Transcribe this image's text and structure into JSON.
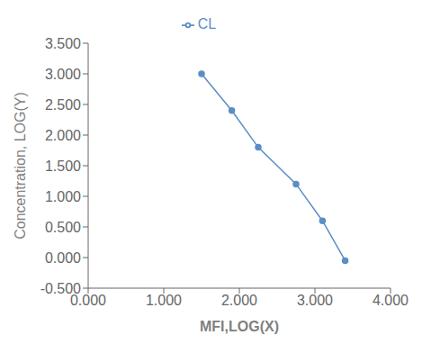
{
  "chart_data": {
    "type": "line",
    "x": [
      1.5,
      1.9,
      2.25,
      2.75,
      3.1,
      3.4
    ],
    "series": [
      {
        "name": "CL",
        "color": "#5b8ec4",
        "values": [
          3.0,
          2.4,
          1.8,
          1.2,
          0.6,
          -0.05
        ],
        "marker": "circle"
      }
    ],
    "xlabel": "MFI,LOG(X)",
    "ylabel": "Concentration, LOG(Y)",
    "xlim": [
      0.0,
      4.0
    ],
    "ylim": [
      -0.5,
      3.5
    ],
    "xticks": [
      {
        "value": 0,
        "label": "0.000"
      },
      {
        "value": 1,
        "label": "1.000"
      },
      {
        "value": 2,
        "label": "2.000"
      },
      {
        "value": 3,
        "label": "3.000"
      },
      {
        "value": 4,
        "label": "4.000"
      }
    ],
    "yticks": [
      {
        "value": -0.5,
        "label": "-0.500"
      },
      {
        "value": 0,
        "label": "0.000"
      },
      {
        "value": 0.5,
        "label": "0.500"
      },
      {
        "value": 1,
        "label": "1.000"
      },
      {
        "value": 1.5,
        "label": "1.500"
      },
      {
        "value": 2,
        "label": "2.000"
      },
      {
        "value": 2.5,
        "label": "2.500"
      },
      {
        "value": 3,
        "label": "3.000"
      },
      {
        "value": 3.5,
        "label": "3.500"
      }
    ],
    "grid": false,
    "legend": "top"
  }
}
